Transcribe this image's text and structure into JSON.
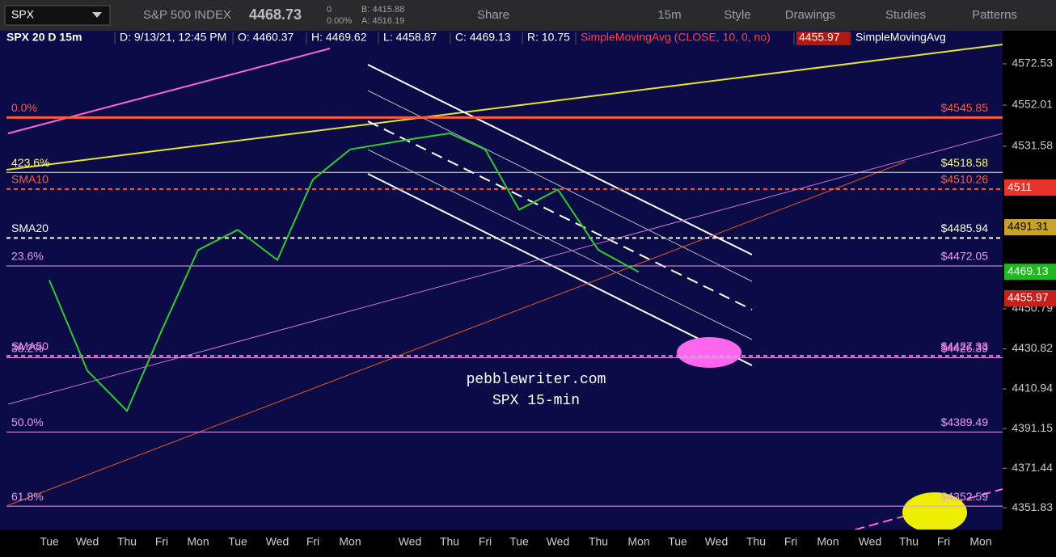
{
  "toolbar": {
    "symbol": "SPX",
    "name": "S&P 500 INDEX",
    "last": "4468.73",
    "change": "0",
    "change_pct": "0.00%",
    "bid": "B: 4415.88",
    "ask": "A: 4516.19",
    "buttons": [
      "Share",
      "15m",
      "Style",
      "Drawings",
      "Studies",
      "Patterns"
    ]
  },
  "info_bar": [
    "SPX 20 D 15m",
    "D: 9/13/21, 12:45 PM",
    "O: 4460.37",
    "H: 4469.62",
    "L: 4458.87",
    "C: 4469.13",
    "R: 10.75",
    "SimpleMovingAvg (CLOSE, 10, 0, no)",
    "4455.97",
    "SimpleMovingAvg"
  ],
  "chart_data": {
    "type": "line",
    "categories": [
      "Tue",
      "Wed",
      "Thu",
      "Fri",
      "Mon",
      "Tue",
      "Wed",
      "Fri",
      "Mon",
      "Wed",
      "Thu",
      "Fri",
      "Tue",
      "Wed",
      "Thu",
      "Mon",
      "Tue",
      "Wed",
      "Thu",
      "Fri",
      "Mon",
      "Wed",
      "Thu",
      "Fri",
      "Mon"
    ],
    "series": [
      {
        "name": "SPX",
        "color": "#2ecc2e",
        "values": [
          4465,
          4420,
          4400,
          4440,
          4480,
          4490,
          4475,
          4515,
          4530,
          4535,
          4538,
          4530,
          4500,
          4510,
          4480,
          4469,
          null,
          null,
          null,
          null,
          null,
          null,
          null,
          null,
          null
        ]
      }
    ],
    "ylim": [
      4341,
      4589
    ],
    "yticks": [
      4572.53,
      4552.01,
      4531.58,
      4450.79,
      4430.82,
      4410.94,
      4391.15,
      4371.44,
      4351.83
    ],
    "levels": [
      {
        "label": "0.0%",
        "value": 4545.85,
        "value_label": "$4545.85",
        "color": "#ff5a3c",
        "dashed": false
      },
      {
        "label": "423.6%",
        "value": 4518.58,
        "value_label": "$4518.58",
        "color": "#ffff66",
        "dashed": false
      },
      {
        "label": "SMA10",
        "value": 4510.26,
        "value_label": "$4510.26",
        "color": "#ff5a3c",
        "dashed": true
      },
      {
        "label": "SMA20",
        "value": 4485.94,
        "value_label": "$4485.94",
        "color": "#ffffff",
        "dashed": true
      },
      {
        "label": "23.6%",
        "value": 4472.05,
        "value_label": "$4472.05",
        "color": "#e89cf0",
        "dashed": false
      },
      {
        "label": "SMA50",
        "value": 4427.33,
        "value_label": "$4427.33",
        "color": "#ff88ff",
        "dashed": true
      },
      {
        "label": "38.2%",
        "value": 4426.39,
        "value_label": "$4426.39",
        "color": "#e89cf0",
        "dashed": false
      },
      {
        "label": "50.0%",
        "value": 4389.49,
        "value_label": "$4389.49",
        "color": "#e89cf0",
        "dashed": false
      },
      {
        "label": "61.8%",
        "value": 4352.59,
        "value_label": "$4352.59",
        "color": "#e89cf0",
        "dashed": false
      }
    ],
    "price_badges": [
      {
        "value": 4511,
        "color": "#e8322a"
      },
      {
        "value": 4491.31,
        "color": "#c9a227"
      },
      {
        "value": 4469.13,
        "color": "#22b822"
      },
      {
        "value": 4455.97,
        "color": "#c8201a"
      }
    ],
    "annotations": [
      "pebblewriter.com",
      "SPX 15-min"
    ]
  }
}
